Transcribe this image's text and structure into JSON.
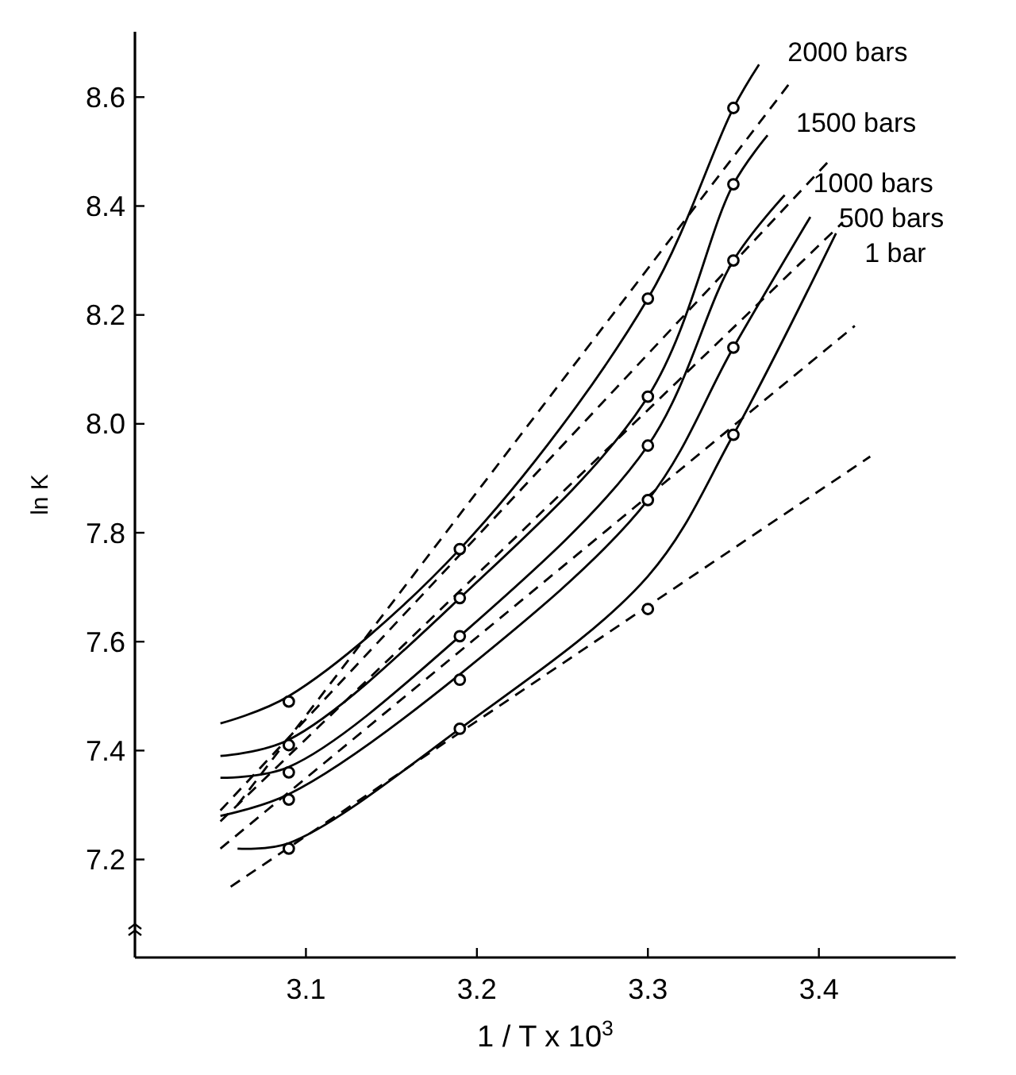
{
  "chart_data": {
    "type": "line",
    "xlabel": "1 / T x 10$^{3}$",
    "ylabel": "ln K",
    "xlim": [
      3.0,
      3.48
    ],
    "ylim": [
      7.02,
      8.72
    ],
    "xticks": [
      3.1,
      3.2,
      3.3,
      3.4
    ],
    "yticks": [
      7.2,
      7.4,
      7.6,
      7.8,
      {
        "value": 8,
        "label": "8.0"
      },
      8.2,
      8.4,
      8.6
    ],
    "series": [
      {
        "name": "2000 bars",
        "color": "#000000",
        "line_style": "solid",
        "x": [
          3.05,
          3.09,
          3.19,
          3.3,
          3.35,
          3.365
        ],
        "values": [
          7.45,
          7.5,
          7.77,
          8.23,
          8.58,
          8.66
        ]
      },
      {
        "name": "1500 bars",
        "color": "#000000",
        "line_style": "solid",
        "x": [
          3.05,
          3.09,
          3.19,
          3.3,
          3.35,
          3.37
        ],
        "values": [
          7.39,
          7.42,
          7.68,
          8.05,
          8.44,
          8.53
        ]
      },
      {
        "name": "1000 bars",
        "color": "#000000",
        "line_style": "solid",
        "x": [
          3.05,
          3.09,
          3.19,
          3.3,
          3.35,
          3.38
        ],
        "values": [
          7.35,
          7.37,
          7.61,
          7.96,
          8.3,
          8.42
        ]
      },
      {
        "name": "500 bars",
        "color": "#000000",
        "line_style": "solid",
        "x": [
          3.05,
          3.09,
          3.19,
          3.3,
          3.35,
          3.395
        ],
        "values": [
          7.28,
          7.32,
          7.54,
          7.86,
          8.14,
          8.38
        ]
      },
      {
        "name": "1 bar",
        "color": "#000000",
        "line_style": "solid",
        "x": [
          3.06,
          3.09,
          3.19,
          3.3,
          3.35,
          3.41
        ],
        "values": [
          7.22,
          7.23,
          7.44,
          7.72,
          7.98,
          8.35
        ]
      },
      {
        "color": "#000000",
        "line_style": "dashed",
        "x": [
          3.06,
          3.384
        ],
        "values": [
          7.3,
          8.63
        ]
      },
      {
        "color": "#000000",
        "line_style": "dashed",
        "x": [
          3.05,
          3.405
        ],
        "values": [
          7.29,
          8.48
        ]
      },
      {
        "color": "#000000",
        "line_style": "dashed",
        "x": [
          3.05,
          3.414
        ],
        "values": [
          7.27,
          8.37
        ]
      },
      {
        "color": "#000000",
        "line_style": "dashed",
        "x": [
          3.05,
          3.421
        ],
        "values": [
          7.22,
          8.18
        ]
      },
      {
        "color": "#000000",
        "line_style": "dashed",
        "x": [
          3.056,
          3.43
        ],
        "values": [
          7.15,
          7.94
        ]
      },
      {
        "type": "scatter",
        "marker": "circle",
        "color": "#000000",
        "x": [
          3.09,
          3.09,
          3.09,
          3.09,
          3.09,
          3.19,
          3.19,
          3.19,
          3.19,
          3.19,
          3.3,
          3.3,
          3.3,
          3.3,
          3.3,
          3.35,
          3.35,
          3.35,
          3.35,
          3.35
        ],
        "values": [
          7.49,
          7.41,
          7.36,
          7.31,
          7.22,
          7.77,
          7.68,
          7.61,
          7.53,
          7.44,
          8.23,
          8.05,
          7.96,
          7.86,
          7.66,
          8.58,
          8.44,
          8.3,
          8.14,
          7.98
        ]
      }
    ]
  }
}
